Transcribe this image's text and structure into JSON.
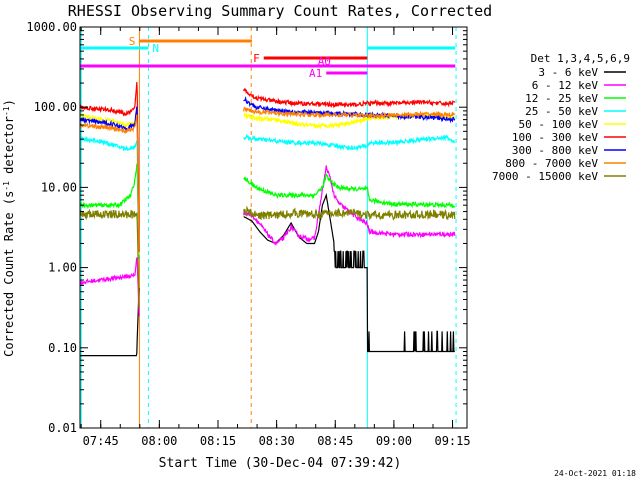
{
  "chart_data": {
    "type": "line",
    "title": "RHESSI Observing Summary Count Rates, Corrected",
    "xlabel": "Start Time (30-Dec-04 07:39:42)",
    "ylabel": "Corrected Count Rate (s⁻¹ detector⁻¹)",
    "ylabel_parts": {
      "pre": "Corrected Count Rate (s",
      "sup1": "-1",
      "mid": " detector",
      "sup2": "-1",
      "post": ")"
    },
    "y_scale": "log",
    "ylim": [
      0.01,
      1000
    ],
    "xlim_minutes": [
      0,
      99
    ],
    "x_ticks": [
      {
        "t": 5.3,
        "label": "07:45"
      },
      {
        "t": 20.3,
        "label": "08:00"
      },
      {
        "t": 35.3,
        "label": "08:15"
      },
      {
        "t": 50.3,
        "label": "08:30"
      },
      {
        "t": 65.3,
        "label": "08:45"
      },
      {
        "t": 80.3,
        "label": "09:00"
      },
      {
        "t": 95.3,
        "label": "09:15"
      }
    ],
    "y_ticks": [
      {
        "v": 0.01,
        "label": "0.01"
      },
      {
        "v": 0.1,
        "label": "0.10"
      },
      {
        "v": 1,
        "label": "1.00"
      },
      {
        "v": 10,
        "label": "10.00"
      },
      {
        "v": 100,
        "label": "100.00"
      },
      {
        "v": 1000,
        "label": "1000.00"
      }
    ],
    "legend_title": "Det 1,3,4,5,6,9",
    "legend_position": "right",
    "series": [
      {
        "name": "3 - 6 keV",
        "color": "#000000",
        "points": [
          [
            0,
            0.08
          ],
          [
            14.5,
            0.08
          ],
          [
            14.9,
            0.3
          ],
          [
            15.2,
            0.7
          ],
          [
            42,
            4.3
          ],
          [
            44,
            3.8
          ],
          [
            46,
            2.8
          ],
          [
            48,
            2.2
          ],
          [
            50,
            2.0
          ],
          [
            52,
            2.5
          ],
          [
            54,
            3.6
          ],
          [
            56,
            2.4
          ],
          [
            58,
            2.0
          ],
          [
            60,
            2.0
          ],
          [
            61,
            2.8
          ],
          [
            62,
            6.0
          ],
          [
            63,
            8.0
          ],
          [
            64,
            4.0
          ],
          [
            65,
            2.0
          ],
          [
            66,
            1.0
          ],
          [
            72,
            1.0
          ],
          [
            73.5,
            0.9
          ],
          [
            73.5,
            0.09
          ],
          [
            84,
            0.09
          ],
          [
            84,
            0.09
          ],
          [
            96,
            0.09
          ]
        ]
      },
      {
        "name": "6 - 12 keV",
        "color": "#ff00ff",
        "points": [
          [
            0,
            0.65
          ],
          [
            14,
            0.8
          ],
          [
            14.6,
            1.4
          ],
          [
            15.2,
            0.2
          ],
          [
            42,
            4.8
          ],
          [
            44,
            4.5
          ],
          [
            46,
            3.5
          ],
          [
            48,
            2.6
          ],
          [
            50,
            2.0
          ],
          [
            52,
            2.3
          ],
          [
            54,
            3.2
          ],
          [
            56,
            2.5
          ],
          [
            58,
            2.3
          ],
          [
            60,
            2.3
          ],
          [
            62,
            9.0
          ],
          [
            63,
            18.0
          ],
          [
            64,
            13.0
          ],
          [
            65,
            8.0
          ],
          [
            66,
            6.5
          ],
          [
            70,
            4.5
          ],
          [
            73,
            3.6
          ],
          [
            73.5,
            3.5
          ],
          [
            74,
            2.8
          ],
          [
            80,
            2.6
          ],
          [
            96,
            2.6
          ]
        ]
      },
      {
        "name": "12 - 25 keV",
        "color": "#00ff00",
        "points": [
          [
            0,
            6.0
          ],
          [
            10,
            6.0
          ],
          [
            13,
            8.0
          ],
          [
            14,
            12
          ],
          [
            14.6,
            20
          ],
          [
            15.2,
            0.8
          ],
          [
            42,
            13
          ],
          [
            45,
            10
          ],
          [
            50,
            8
          ],
          [
            55,
            8
          ],
          [
            60,
            8
          ],
          [
            62,
            10
          ],
          [
            63,
            14
          ],
          [
            64,
            12
          ],
          [
            66,
            10
          ],
          [
            70,
            9.5
          ],
          [
            73.5,
            9.5
          ],
          [
            74,
            7
          ],
          [
            80,
            6.2
          ],
          [
            96,
            6.0
          ]
        ]
      },
      {
        "name": "25 - 50 keV",
        "color": "#00ffff",
        "points": [
          [
            0,
            40
          ],
          [
            5,
            38
          ],
          [
            10,
            32
          ],
          [
            12,
            30
          ],
          [
            14,
            32
          ],
          [
            14.6,
            40
          ],
          [
            15.2,
            0.8
          ],
          [
            42,
            42
          ],
          [
            45,
            40
          ],
          [
            50,
            38
          ],
          [
            55,
            36
          ],
          [
            60,
            36
          ],
          [
            65,
            33
          ],
          [
            70,
            31
          ],
          [
            73.5,
            33
          ],
          [
            74,
            36
          ],
          [
            80,
            36
          ],
          [
            88,
            40
          ],
          [
            94,
            42
          ],
          [
            96,
            35
          ]
        ]
      },
      {
        "name": "50 - 100 keV",
        "color": "#ffff00",
        "points": [
          [
            0,
            78
          ],
          [
            8,
            68
          ],
          [
            12,
            60
          ],
          [
            14,
            65
          ],
          [
            14.6,
            100
          ],
          [
            15.2,
            0.8
          ],
          [
            42,
            80
          ],
          [
            45,
            72
          ],
          [
            50,
            70
          ],
          [
            55,
            62
          ],
          [
            60,
            58
          ],
          [
            65,
            60
          ],
          [
            70,
            65
          ],
          [
            73.5,
            72
          ],
          [
            80,
            76
          ],
          [
            90,
            80
          ],
          [
            96,
            72
          ]
        ]
      },
      {
        "name": "100 - 300 keV",
        "color": "#ff0000",
        "points": [
          [
            0,
            100
          ],
          [
            8,
            92
          ],
          [
            12,
            82
          ],
          [
            14,
            95
          ],
          [
            14.6,
            220
          ],
          [
            15.2,
            0.8
          ],
          [
            42,
            165
          ],
          [
            45,
            130
          ],
          [
            50,
            118
          ],
          [
            55,
            112
          ],
          [
            60,
            110
          ],
          [
            65,
            108
          ],
          [
            70,
            107
          ],
          [
            73.5,
            112
          ],
          [
            80,
            112
          ],
          [
            88,
            115
          ],
          [
            94,
            110
          ],
          [
            96,
            120
          ]
        ]
      },
      {
        "name": "300 - 800 keV",
        "color": "#0000ff",
        "points": [
          [
            0,
            70
          ],
          [
            8,
            62
          ],
          [
            12,
            55
          ],
          [
            14,
            60
          ],
          [
            14.6,
            110
          ],
          [
            15.2,
            0.8
          ],
          [
            42,
            125
          ],
          [
            45,
            100
          ],
          [
            50,
            92
          ],
          [
            55,
            88
          ],
          [
            60,
            85
          ],
          [
            65,
            84
          ],
          [
            70,
            82
          ],
          [
            73.5,
            80
          ],
          [
            80,
            78
          ],
          [
            88,
            75
          ],
          [
            94,
            72
          ],
          [
            96,
            70
          ]
        ]
      },
      {
        "name": "800 - 7000 keV",
        "color": "#ff8000",
        "points": [
          [
            0,
            60
          ],
          [
            8,
            55
          ],
          [
            12,
            50
          ],
          [
            14,
            55
          ],
          [
            14.6,
            80
          ],
          [
            15.2,
            0.8
          ],
          [
            42,
            95
          ],
          [
            45,
            88
          ],
          [
            50,
            85
          ],
          [
            55,
            82
          ],
          [
            60,
            80
          ],
          [
            65,
            80
          ],
          [
            70,
            80
          ],
          [
            73.5,
            78
          ],
          [
            80,
            80
          ],
          [
            90,
            82
          ],
          [
            96,
            80
          ]
        ]
      },
      {
        "name": "7000 - 15000 keV",
        "color": "#808000",
        "points": [
          [
            0,
            4.6
          ],
          [
            10,
            4.6
          ],
          [
            13,
            4.6
          ],
          [
            14,
            4.6
          ],
          [
            14.6,
            5
          ],
          [
            15.2,
            0.2
          ],
          [
            42,
            5.2
          ],
          [
            45,
            4.5
          ],
          [
            50,
            4.5
          ],
          [
            55,
            4.8
          ],
          [
            60,
            4.6
          ],
          [
            65,
            4.8
          ],
          [
            70,
            4.8
          ],
          [
            73.5,
            4.5
          ],
          [
            80,
            4.5
          ],
          [
            90,
            4.6
          ],
          [
            96,
            4.5
          ]
        ]
      }
    ],
    "flag_bars": [
      {
        "label": "S",
        "color": "#ff8000",
        "t_start": 15.2,
        "t_end": 44,
        "level": 0,
        "label_side": "left"
      },
      {
        "label": "N",
        "color": "#00ffff",
        "t_start": 0,
        "t_end": 17.5,
        "level": 1,
        "label_side": "right"
      },
      {
        "label": "N",
        "color": "#00ffff",
        "t_start": 73.5,
        "t_end": 96,
        "level": 1,
        "label_side": "none"
      },
      {
        "label": "F",
        "color": "#ff0000",
        "t_start": 47,
        "t_end": 73.5,
        "level": 2,
        "label_side": "left"
      },
      {
        "label": "A0",
        "color": "#ff00ff",
        "t_start": 0,
        "t_end": 96,
        "level": 3,
        "label_side": "inline",
        "label_t": 62.5
      },
      {
        "label": "A1",
        "color": "#ff00ff",
        "t_start": 63,
        "t_end": 73.5,
        "level": 4,
        "label_side": "left"
      }
    ],
    "vlines": [
      {
        "t": 0.3,
        "color": "#00ffff",
        "style": "solid"
      },
      {
        "t": 15.2,
        "color": "#ff8000",
        "style": "solid"
      },
      {
        "t": 17.5,
        "color": "#00ffff",
        "style": "dashed"
      },
      {
        "t": 43.8,
        "color": "#ff8000",
        "style": "dashed"
      },
      {
        "t": 73.5,
        "color": "#00ffff",
        "style": "solid"
      },
      {
        "t": 96.2,
        "color": "#00ffff",
        "style": "dashed"
      }
    ],
    "footer_timestamp": "24-Oct-2021 01:18"
  }
}
